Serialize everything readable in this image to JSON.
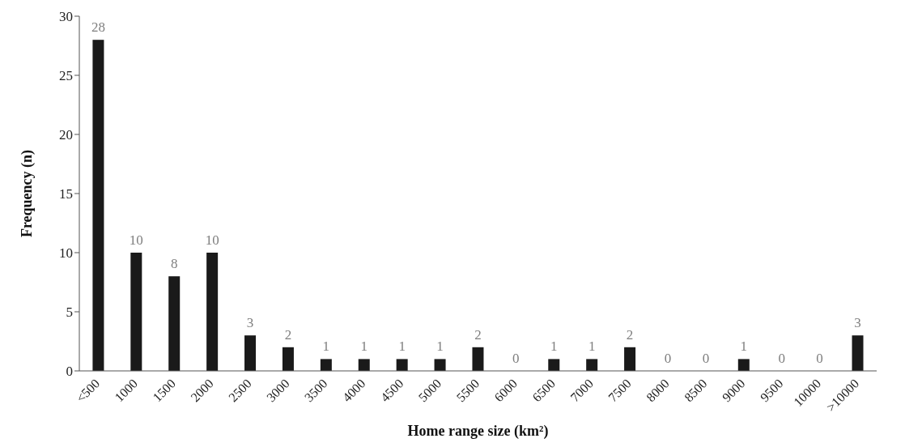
{
  "chart_data": {
    "type": "bar",
    "xlabel": "Home range size (km²)",
    "ylabel": "Frequency (n)",
    "categories": [
      "<500",
      "1000",
      "1500",
      "2000",
      "2500",
      "3000",
      "3500",
      "4000",
      "4500",
      "5000",
      "5500",
      "6000",
      "6500",
      "7000",
      "7500",
      "8000",
      "8500",
      "9000",
      "9500",
      "10000",
      ">10000"
    ],
    "values": [
      28,
      10,
      8,
      10,
      3,
      2,
      1,
      1,
      1,
      1,
      2,
      0,
      1,
      1,
      2,
      0,
      0,
      1,
      0,
      0,
      3
    ],
    "color": "#1a1a1a",
    "ylim": [
      0,
      30
    ],
    "yticks": [
      0,
      5,
      10,
      15,
      20,
      25,
      30
    ],
    "grid": false,
    "data_labels": true
  }
}
